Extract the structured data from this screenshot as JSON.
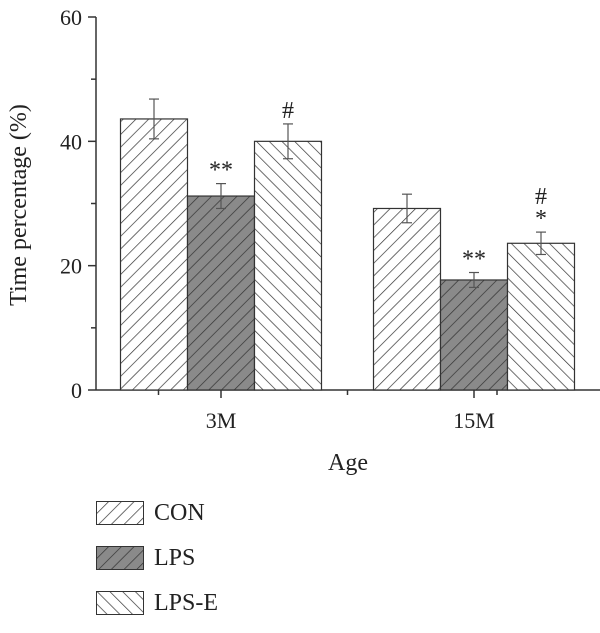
{
  "chart_data": {
    "type": "bar",
    "xlabel": "Age",
    "ylabel": "Time percentage (%)",
    "categories": [
      "3M",
      "15M"
    ],
    "ylim": [
      0,
      60
    ],
    "yticks": [
      0,
      20,
      40,
      60
    ],
    "series": [
      {
        "name": "CON",
        "values": [
          43.6,
          29.2
        ],
        "errors": [
          3.2,
          2.3
        ],
        "annotations": [
          "",
          ""
        ],
        "pattern": "diag-up",
        "fill": "#ffffff"
      },
      {
        "name": "LPS",
        "values": [
          31.2,
          17.7
        ],
        "errors": [
          2.0,
          1.2
        ],
        "annotations": [
          "**",
          "**"
        ],
        "pattern": "diag-up",
        "fill": "#8a8a8a"
      },
      {
        "name": "LPS-E",
        "values": [
          40.0,
          23.6
        ],
        "errors": [
          2.8,
          1.8
        ],
        "annotations": [
          "#",
          "#\n*"
        ],
        "pattern": "diag-down",
        "fill": "#ffffff"
      }
    ],
    "legend_position": "bottom-left"
  },
  "colors": {
    "axis": "#333333",
    "hatch": "#333333"
  }
}
